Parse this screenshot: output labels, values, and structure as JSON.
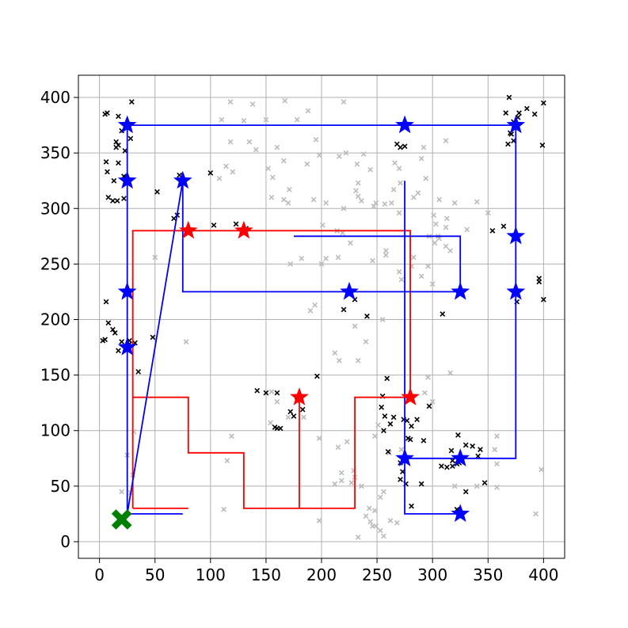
{
  "chart_data": {
    "type": "scatter",
    "title": "",
    "xlabel": "",
    "ylabel": "",
    "xlim": [
      -19,
      419
    ],
    "ylim": [
      -15,
      420
    ],
    "x_ticks": [
      0,
      50,
      100,
      150,
      200,
      250,
      300,
      350,
      400
    ],
    "y_ticks": [
      0,
      50,
      100,
      150,
      200,
      250,
      300,
      350,
      400
    ],
    "x_tick_labels": [
      "0",
      "50",
      "100",
      "150",
      "200",
      "250",
      "300",
      "350",
      "400"
    ],
    "y_tick_labels": [
      "0",
      "50",
      "100",
      "150",
      "200",
      "250",
      "300",
      "350",
      "400"
    ],
    "grid": true,
    "legend": "none",
    "colors": {
      "red": "#ff0000",
      "blue": "#0000ff",
      "green": "#008000",
      "black": "#000000",
      "grey": "#bbbbbb",
      "grid": "#b0b0b0"
    },
    "start_marker": {
      "x": 20,
      "y": 20
    },
    "series": [
      {
        "color": "red",
        "polylines": [
          [
            [
              30,
              30
            ],
            [
              80,
              30
            ]
          ],
          [
            [
              30,
              30
            ],
            [
              30,
              280
            ],
            [
              280,
              280
            ],
            [
              280,
              130
            ],
            [
              230,
              130
            ],
            [
              230,
              30
            ],
            [
              130,
              30
            ],
            [
              130,
              80
            ],
            [
              80,
              80
            ],
            [
              80,
              130
            ],
            [
              30,
              130
            ]
          ],
          [
            [
              180,
              30
            ],
            [
              180,
              130
            ]
          ]
        ],
        "star_markers": [
          [
            80,
            280
          ],
          [
            130,
            280
          ],
          [
            180,
            130
          ],
          [
            280,
            130
          ]
        ]
      },
      {
        "color": "blue",
        "polylines": [
          [
            [
              25,
              25
            ],
            [
              75,
              25
            ]
          ],
          [
            [
              25,
              25
            ],
            [
              25,
              375
            ],
            [
              375,
              375
            ],
            [
              375,
              75
            ],
            [
              275,
              75
            ],
            [
              275,
              325
            ]
          ],
          [
            [
              275,
              75
            ],
            [
              275,
              25
            ],
            [
              325,
              25
            ]
          ],
          [
            [
              25,
              25
            ],
            [
              75,
              325
            ],
            [
              75,
              225
            ],
            [
              325,
              225
            ],
            [
              325,
              275
            ],
            [
              175,
              275
            ]
          ]
        ],
        "star_markers": [
          [
            25,
            375
          ],
          [
            275,
            375
          ],
          [
            375,
            375
          ],
          [
            25,
            325
          ],
          [
            75,
            325
          ],
          [
            375,
            275
          ],
          [
            25,
            225
          ],
          [
            225,
            225
          ],
          [
            325,
            225
          ],
          [
            375,
            225
          ],
          [
            25,
            175
          ],
          [
            275,
            75
          ],
          [
            325,
            75
          ],
          [
            325,
            25
          ]
        ]
      }
    ],
    "black_points": [
      [
        5,
        385
      ],
      [
        7,
        386
      ],
      [
        17,
        383
      ],
      [
        20,
        370
      ],
      [
        15,
        360
      ],
      [
        17,
        357
      ],
      [
        15,
        355
      ],
      [
        23,
        352
      ],
      [
        28,
        363
      ],
      [
        29,
        396
      ],
      [
        6,
        342
      ],
      [
        7,
        333
      ],
      [
        13,
        325
      ],
      [
        17,
        341
      ],
      [
        22,
        329
      ],
      [
        24,
        328
      ],
      [
        22,
        309
      ],
      [
        8,
        310
      ],
      [
        12,
        307
      ],
      [
        16,
        307
      ],
      [
        72,
        330
      ],
      [
        67,
        291
      ],
      [
        70,
        294
      ],
      [
        52,
        315
      ],
      [
        100,
        332
      ],
      [
        103,
        285
      ],
      [
        123,
        286
      ],
      [
        132,
        282
      ],
      [
        6,
        216
      ],
      [
        8,
        197
      ],
      [
        12,
        191
      ],
      [
        14,
        188
      ],
      [
        5,
        182
      ],
      [
        3,
        181
      ],
      [
        17,
        172
      ],
      [
        20,
        180
      ],
      [
        27,
        181
      ],
      [
        27,
        178
      ],
      [
        32,
        179
      ],
      [
        35,
        153
      ],
      [
        48,
        184
      ],
      [
        142,
        136
      ],
      [
        150,
        134
      ],
      [
        160,
        134
      ],
      [
        158,
        103
      ],
      [
        160,
        102
      ],
      [
        163,
        102
      ],
      [
        172,
        117
      ],
      [
        178,
        127
      ],
      [
        175,
        113
      ],
      [
        183,
        119
      ],
      [
        196,
        149
      ],
      [
        220,
        209
      ],
      [
        230,
        218
      ],
      [
        241,
        203
      ],
      [
        268,
        358
      ],
      [
        275,
        356
      ],
      [
        271,
        355
      ],
      [
        259,
        147
      ],
      [
        255,
        131
      ],
      [
        254,
        121
      ],
      [
        257,
        113
      ],
      [
        265,
        112
      ],
      [
        262,
        106
      ],
      [
        256,
        100
      ],
      [
        274,
        110
      ],
      [
        277,
        109
      ],
      [
        286,
        110
      ],
      [
        281,
        104
      ],
      [
        278,
        93
      ],
      [
        280,
        92
      ],
      [
        260,
        81
      ],
      [
        271,
        71
      ],
      [
        273,
        63
      ],
      [
        271,
        56
      ],
      [
        276,
        52
      ],
      [
        281,
        32
      ],
      [
        290,
        52
      ],
      [
        292,
        91
      ],
      [
        297,
        122
      ],
      [
        309,
        205
      ],
      [
        308,
        68
      ],
      [
        313,
        67
      ],
      [
        318,
        68
      ],
      [
        322,
        70
      ],
      [
        324,
        71
      ],
      [
        323,
        96
      ],
      [
        330,
        87
      ],
      [
        336,
        86
      ],
      [
        343,
        83
      ],
      [
        341,
        77
      ],
      [
        317,
        82
      ],
      [
        318,
        73
      ],
      [
        330,
        45
      ],
      [
        347,
        53
      ],
      [
        323,
        28
      ],
      [
        354,
        280
      ],
      [
        364,
        284
      ],
      [
        369,
        400
      ],
      [
        373,
        378
      ],
      [
        366,
        386
      ],
      [
        378,
        386
      ],
      [
        370,
        368
      ],
      [
        371,
        367
      ],
      [
        377,
        382
      ],
      [
        385,
        390
      ],
      [
        392,
        385
      ],
      [
        400,
        395
      ],
      [
        368,
        358
      ],
      [
        399,
        357
      ],
      [
        373,
        361
      ],
      [
        396,
        237
      ],
      [
        396,
        234
      ],
      [
        400,
        218
      ],
      [
        376,
        216
      ],
      [
        322,
        29
      ]
    ],
    "grey_points": [
      [
        118,
        396
      ],
      [
        138,
        394
      ],
      [
        167,
        397
      ],
      [
        188,
        388
      ],
      [
        220,
        396
      ],
      [
        110,
        380
      ],
      [
        130,
        379
      ],
      [
        150,
        380
      ],
      [
        178,
        380
      ],
      [
        118,
        360
      ],
      [
        135,
        360
      ],
      [
        141,
        353
      ],
      [
        160,
        355
      ],
      [
        195,
        362
      ],
      [
        198,
        348
      ],
      [
        216,
        347
      ],
      [
        238,
        349
      ],
      [
        222,
        350
      ],
      [
        114,
        338
      ],
      [
        108,
        327
      ],
      [
        120,
        333
      ],
      [
        152,
        336
      ],
      [
        156,
        328
      ],
      [
        166,
        343
      ],
      [
        187,
        340
      ],
      [
        232,
        340
      ],
      [
        233,
        323
      ],
      [
        244,
        335
      ],
      [
        233,
        311
      ],
      [
        266,
        341
      ],
      [
        270,
        336
      ],
      [
        290,
        345
      ],
      [
        294,
        327
      ],
      [
        306,
        308
      ],
      [
        287,
        314
      ],
      [
        301,
        294
      ],
      [
        320,
        305
      ],
      [
        340,
        306
      ],
      [
        350,
        296
      ],
      [
        193,
        308
      ],
      [
        204,
        305
      ],
      [
        201,
        285
      ],
      [
        220,
        300
      ],
      [
        231,
        316
      ],
      [
        236,
        307
      ],
      [
        249,
        305
      ],
      [
        257,
        304
      ],
      [
        270,
        296
      ],
      [
        265,
        317
      ],
      [
        283,
        310
      ],
      [
        303,
        286
      ],
      [
        312,
        266
      ],
      [
        316,
        262
      ],
      [
        331,
        281
      ],
      [
        214,
        280
      ],
      [
        219,
        278
      ],
      [
        226,
        269
      ],
      [
        272,
        236
      ],
      [
        270,
        243
      ],
      [
        281,
        248
      ],
      [
        283,
        256
      ],
      [
        290,
        239
      ],
      [
        296,
        248
      ],
      [
        300,
        232
      ],
      [
        312,
        283
      ],
      [
        305,
        275
      ],
      [
        312,
        361
      ],
      [
        292,
        355
      ],
      [
        271,
        323
      ],
      [
        247,
        302
      ],
      [
        313,
        291
      ],
      [
        306,
        273
      ],
      [
        302,
        269
      ],
      [
        258,
        262
      ],
      [
        246,
        253
      ],
      [
        263,
        305
      ],
      [
        297,
        275
      ],
      [
        258,
        258
      ],
      [
        171,
        317
      ],
      [
        166,
        308
      ],
      [
        170,
        305
      ],
      [
        155,
        310
      ],
      [
        172,
        250
      ],
      [
        182,
        255
      ],
      [
        200,
        250
      ],
      [
        204,
        255
      ],
      [
        215,
        256
      ],
      [
        190,
        208
      ],
      [
        194,
        213
      ],
      [
        230,
        194
      ],
      [
        255,
        200
      ],
      [
        240,
        180
      ],
      [
        212,
        170
      ],
      [
        216,
        163
      ],
      [
        233,
        163
      ],
      [
        296,
        148
      ],
      [
        316,
        152
      ],
      [
        293,
        134
      ],
      [
        300,
        126
      ],
      [
        155,
        135
      ],
      [
        160,
        126
      ],
      [
        184,
        112
      ],
      [
        154,
        107
      ],
      [
        170,
        112
      ],
      [
        215,
        85
      ],
      [
        198,
        93
      ],
      [
        223,
        90
      ],
      [
        248,
        95
      ],
      [
        251,
        105
      ],
      [
        261,
        80
      ],
      [
        272,
        83
      ],
      [
        218,
        62
      ],
      [
        229,
        64
      ],
      [
        230,
        58
      ],
      [
        227,
        53
      ],
      [
        218,
        55
      ],
      [
        212,
        52
      ],
      [
        236,
        50
      ],
      [
        253,
        40
      ],
      [
        256,
        45
      ],
      [
        243,
        30
      ],
      [
        248,
        28
      ],
      [
        240,
        23
      ],
      [
        244,
        18
      ],
      [
        246,
        14
      ],
      [
        249,
        14
      ],
      [
        253,
        10
      ],
      [
        256,
        5
      ],
      [
        233,
        4
      ],
      [
        198,
        19
      ],
      [
        262,
        19
      ],
      [
        268,
        17
      ],
      [
        358,
        95
      ],
      [
        356,
        83
      ],
      [
        358,
        70
      ],
      [
        358,
        49
      ],
      [
        340,
        50
      ],
      [
        320,
        50
      ],
      [
        398,
        65
      ],
      [
        393,
        25
      ],
      [
        115,
        73
      ],
      [
        119,
        95
      ],
      [
        112,
        29
      ],
      [
        78,
        180
      ],
      [
        50,
        256
      ],
      [
        28,
        44
      ],
      [
        30,
        60
      ],
      [
        25,
        78
      ],
      [
        31,
        99
      ],
      [
        20,
        45
      ]
    ]
  }
}
